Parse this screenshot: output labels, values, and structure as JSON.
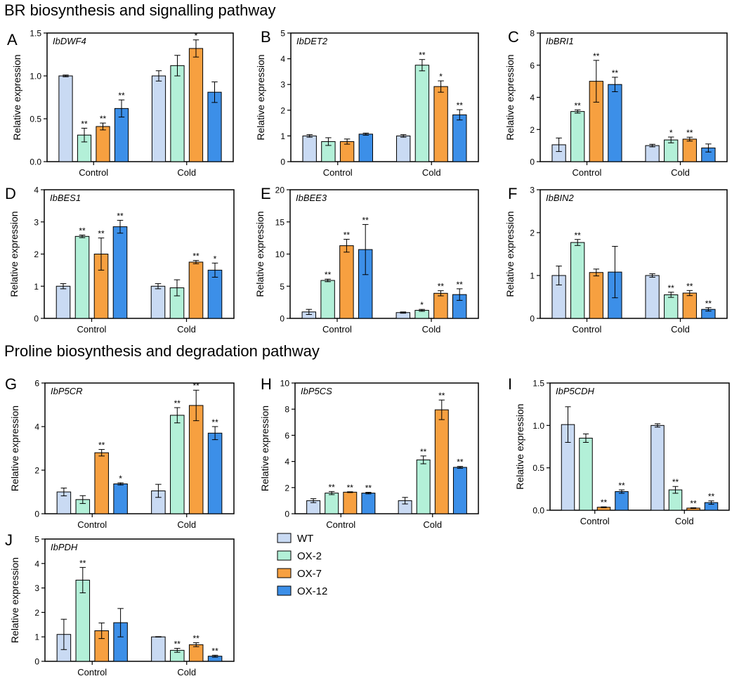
{
  "section_titles": {
    "br": "BR biosynthesis and signalling pathway",
    "proline": "Proline biosynthesis and degradation pathway"
  },
  "legend": {
    "items": [
      {
        "label": "WT",
        "color": "#c9daf3"
      },
      {
        "label": "OX-2",
        "color": "#b3f0d8"
      },
      {
        "label": "OX-7",
        "color": "#f7a040"
      },
      {
        "label": "OX-12",
        "color": "#3c8fe8"
      }
    ]
  },
  "chart_data": [
    {
      "panel": "A",
      "type": "bar",
      "title": "IbDWF4",
      "ylabel": "Relative expression",
      "xlabel": "",
      "ylim": [
        0,
        1.5
      ],
      "yticks": [
        "0.0",
        "0.5",
        "1.0",
        "1.5"
      ],
      "ytick_values": [
        0,
        0.5,
        1.0,
        1.5
      ],
      "categories": [
        "Control",
        "Cold"
      ],
      "series": [
        {
          "name": "WT",
          "values": [
            1.0,
            1.0
          ],
          "errors": [
            0.01,
            0.06
          ],
          "sig": [
            "",
            ""
          ]
        },
        {
          "name": "OX-2",
          "values": [
            0.31,
            1.12
          ],
          "errors": [
            0.08,
            0.12
          ],
          "sig": [
            "**",
            ""
          ]
        },
        {
          "name": "OX-7",
          "values": [
            0.41,
            1.32
          ],
          "errors": [
            0.04,
            0.1
          ],
          "sig": [
            "**",
            "*"
          ]
        },
        {
          "name": "OX-12",
          "values": [
            0.62,
            0.81
          ],
          "errors": [
            0.1,
            0.12
          ],
          "sig": [
            "**",
            ""
          ]
        }
      ]
    },
    {
      "panel": "B",
      "type": "bar",
      "title": "IbDET2",
      "ylabel": "Relative expression",
      "xlabel": "",
      "ylim": [
        0,
        5
      ],
      "yticks": [
        "0",
        "1",
        "2",
        "3",
        "4",
        "5"
      ],
      "ytick_values": [
        0,
        1,
        2,
        3,
        4,
        5
      ],
      "categories": [
        "Control",
        "Cold"
      ],
      "series": [
        {
          "name": "WT",
          "values": [
            1.0,
            1.0
          ],
          "errors": [
            0.05,
            0.05
          ],
          "sig": [
            "",
            ""
          ]
        },
        {
          "name": "OX-2",
          "values": [
            0.78,
            3.75
          ],
          "errors": [
            0.15,
            0.22
          ],
          "sig": [
            "",
            "**"
          ]
        },
        {
          "name": "OX-7",
          "values": [
            0.78,
            2.92
          ],
          "errors": [
            0.1,
            0.22
          ],
          "sig": [
            "",
            "*"
          ]
        },
        {
          "name": "OX-12",
          "values": [
            1.07,
            1.82
          ],
          "errors": [
            0.04,
            0.2
          ],
          "sig": [
            "",
            "**"
          ]
        }
      ]
    },
    {
      "panel": "C",
      "type": "bar",
      "title": "IbBRI1",
      "ylabel": "Relative expression",
      "xlabel": "",
      "ylim": [
        0,
        8
      ],
      "yticks": [
        "0",
        "2",
        "4",
        "6",
        "8"
      ],
      "ytick_values": [
        0,
        2,
        4,
        6,
        8
      ],
      "categories": [
        "Control",
        "Cold"
      ],
      "series": [
        {
          "name": "WT",
          "values": [
            1.05,
            1.0
          ],
          "errors": [
            0.42,
            0.08
          ],
          "sig": [
            "",
            ""
          ]
        },
        {
          "name": "OX-2",
          "values": [
            3.12,
            1.35
          ],
          "errors": [
            0.1,
            0.18
          ],
          "sig": [
            "**",
            "*"
          ]
        },
        {
          "name": "OX-7",
          "values": [
            5.0,
            1.4
          ],
          "errors": [
            1.3,
            0.12
          ],
          "sig": [
            "**",
            "**"
          ]
        },
        {
          "name": "OX-12",
          "values": [
            4.8,
            0.85
          ],
          "errors": [
            0.45,
            0.25
          ],
          "sig": [
            "**",
            ""
          ]
        }
      ]
    },
    {
      "panel": "D",
      "type": "bar",
      "title": "IbBES1",
      "ylabel": "Relative expression",
      "xlabel": "",
      "ylim": [
        0,
        4
      ],
      "yticks": [
        "0",
        "1",
        "2",
        "3",
        "4"
      ],
      "ytick_values": [
        0,
        1,
        2,
        3,
        4
      ],
      "categories": [
        "Control",
        "Cold"
      ],
      "series": [
        {
          "name": "WT",
          "values": [
            1.0,
            1.0
          ],
          "errors": [
            0.08,
            0.08
          ],
          "sig": [
            "",
            ""
          ]
        },
        {
          "name": "OX-2",
          "values": [
            2.55,
            0.95
          ],
          "errors": [
            0.04,
            0.25
          ],
          "sig": [
            "**",
            ""
          ]
        },
        {
          "name": "OX-7",
          "values": [
            2.0,
            1.75
          ],
          "errors": [
            0.5,
            0.05
          ],
          "sig": [
            "**",
            "**"
          ]
        },
        {
          "name": "OX-12",
          "values": [
            2.85,
            1.5
          ],
          "errors": [
            0.2,
            0.22
          ],
          "sig": [
            "**",
            "*"
          ]
        }
      ]
    },
    {
      "panel": "E",
      "type": "bar",
      "title": "IbBEE3",
      "ylabel": "Relative expression",
      "xlabel": "",
      "ylim": [
        0,
        20
      ],
      "yticks": [
        "0",
        "5",
        "10",
        "15",
        "20"
      ],
      "ytick_values": [
        0,
        5,
        10,
        15,
        20
      ],
      "categories": [
        "Control",
        "Cold"
      ],
      "series": [
        {
          "name": "WT",
          "values": [
            1.0,
            0.9
          ],
          "errors": [
            0.4,
            0.1
          ],
          "sig": [
            "",
            ""
          ]
        },
        {
          "name": "OX-2",
          "values": [
            5.9,
            1.25
          ],
          "errors": [
            0.2,
            0.15
          ],
          "sig": [
            "**",
            "*"
          ]
        },
        {
          "name": "OX-7",
          "values": [
            11.3,
            3.9
          ],
          "errors": [
            1.0,
            0.4
          ],
          "sig": [
            "**",
            "**"
          ]
        },
        {
          "name": "OX-12",
          "values": [
            10.7,
            3.7
          ],
          "errors": [
            3.9,
            0.9
          ],
          "sig": [
            "**",
            "**"
          ]
        }
      ]
    },
    {
      "panel": "F",
      "type": "bar",
      "title": "IbBIN2",
      "ylabel": "Relative expression",
      "xlabel": "",
      "ylim": [
        0,
        3
      ],
      "yticks": [
        "0",
        "1",
        "2",
        "3"
      ],
      "ytick_values": [
        0,
        1,
        2,
        3
      ],
      "categories": [
        "Control",
        "Cold"
      ],
      "series": [
        {
          "name": "WT",
          "values": [
            1.0,
            1.0
          ],
          "errors": [
            0.22,
            0.04
          ],
          "sig": [
            "",
            ""
          ]
        },
        {
          "name": "OX-2",
          "values": [
            1.77,
            0.55
          ],
          "errors": [
            0.07,
            0.06
          ],
          "sig": [
            "**",
            "**"
          ]
        },
        {
          "name": "OX-7",
          "values": [
            1.07,
            0.59
          ],
          "errors": [
            0.08,
            0.06
          ],
          "sig": [
            "",
            "**"
          ]
        },
        {
          "name": "OX-12",
          "values": [
            1.08,
            0.21
          ],
          "errors": [
            0.6,
            0.04
          ],
          "sig": [
            "",
            "**"
          ]
        }
      ]
    },
    {
      "panel": "G",
      "type": "bar",
      "title": "IbP5CR",
      "ylabel": "Relative expression",
      "xlabel": "",
      "ylim": [
        0,
        6
      ],
      "yticks": [
        "0",
        "2",
        "4",
        "6"
      ],
      "ytick_values": [
        0,
        2,
        4,
        6
      ],
      "categories": [
        "Control",
        "Cold"
      ],
      "series": [
        {
          "name": "WT",
          "values": [
            1.0,
            1.05
          ],
          "errors": [
            0.18,
            0.3
          ],
          "sig": [
            "",
            ""
          ]
        },
        {
          "name": "OX-2",
          "values": [
            0.65,
            4.52
          ],
          "errors": [
            0.18,
            0.35
          ],
          "sig": [
            "",
            "**"
          ]
        },
        {
          "name": "OX-7",
          "values": [
            2.8,
            4.97
          ],
          "errors": [
            0.15,
            0.7
          ],
          "sig": [
            "**",
            "**"
          ]
        },
        {
          "name": "OX-12",
          "values": [
            1.37,
            3.7
          ],
          "errors": [
            0.05,
            0.3
          ],
          "sig": [
            "*",
            "**"
          ]
        }
      ]
    },
    {
      "panel": "H",
      "type": "bar",
      "title": "IbP5CS",
      "ylabel": "Relative expression",
      "xlabel": "",
      "ylim": [
        0,
        10
      ],
      "yticks": [
        "0",
        "2",
        "4",
        "6",
        "8",
        "10"
      ],
      "ytick_values": [
        0,
        2,
        4,
        6,
        8,
        10
      ],
      "categories": [
        "Control",
        "Cold"
      ],
      "series": [
        {
          "name": "WT",
          "values": [
            1.0,
            1.0
          ],
          "errors": [
            0.15,
            0.25
          ],
          "sig": [
            "",
            ""
          ]
        },
        {
          "name": "OX-2",
          "values": [
            1.58,
            4.12
          ],
          "errors": [
            0.12,
            0.3
          ],
          "sig": [
            "**",
            "**"
          ]
        },
        {
          "name": "OX-7",
          "values": [
            1.65,
            7.95
          ],
          "errors": [
            0.03,
            0.75
          ],
          "sig": [
            "**",
            "**"
          ]
        },
        {
          "name": "OX-12",
          "values": [
            1.58,
            3.55
          ],
          "errors": [
            0.06,
            0.07
          ],
          "sig": [
            "**",
            "**"
          ]
        }
      ]
    },
    {
      "panel": "I",
      "type": "bar",
      "title": "IbP5CDH",
      "ylabel": "Relative expression",
      "xlabel": "",
      "ylim": [
        0,
        1.5
      ],
      "yticks": [
        "0.0",
        "0.5",
        "1.0",
        "1.5"
      ],
      "ytick_values": [
        0,
        0.5,
        1.0,
        1.5
      ],
      "categories": [
        "Control",
        "Cold"
      ],
      "series": [
        {
          "name": "WT",
          "values": [
            1.01,
            1.0
          ],
          "errors": [
            0.21,
            0.02
          ],
          "sig": [
            "",
            ""
          ]
        },
        {
          "name": "OX-2",
          "values": [
            0.85,
            0.24
          ],
          "errors": [
            0.05,
            0.04
          ],
          "sig": [
            "",
            "**"
          ]
        },
        {
          "name": "OX-7",
          "values": [
            0.035,
            0.025
          ],
          "errors": [
            0.005,
            0.004
          ],
          "sig": [
            "**",
            "**"
          ]
        },
        {
          "name": "OX-12",
          "values": [
            0.22,
            0.09
          ],
          "errors": [
            0.02,
            0.02
          ],
          "sig": [
            "**",
            "**"
          ]
        }
      ]
    },
    {
      "panel": "J",
      "type": "bar",
      "title": "IbPDH",
      "ylabel": "Relative expression",
      "xlabel": "",
      "ylim": [
        0,
        5
      ],
      "yticks": [
        "0",
        "1",
        "2",
        "3",
        "4",
        "5"
      ],
      "ytick_values": [
        0,
        1,
        2,
        3,
        4,
        5
      ],
      "categories": [
        "Control",
        "Cold"
      ],
      "series": [
        {
          "name": "WT",
          "values": [
            1.1,
            1.0
          ],
          "errors": [
            0.62,
            0.01
          ],
          "sig": [
            "",
            ""
          ]
        },
        {
          "name": "OX-2",
          "values": [
            3.32,
            0.45
          ],
          "errors": [
            0.52,
            0.08
          ],
          "sig": [
            "**",
            "**"
          ]
        },
        {
          "name": "OX-7",
          "values": [
            1.25,
            0.68
          ],
          "errors": [
            0.32,
            0.08
          ],
          "sig": [
            "",
            "**"
          ]
        },
        {
          "name": "OX-12",
          "values": [
            1.58,
            0.21
          ],
          "errors": [
            0.58,
            0.04
          ],
          "sig": [
            "",
            "**"
          ]
        }
      ]
    }
  ]
}
